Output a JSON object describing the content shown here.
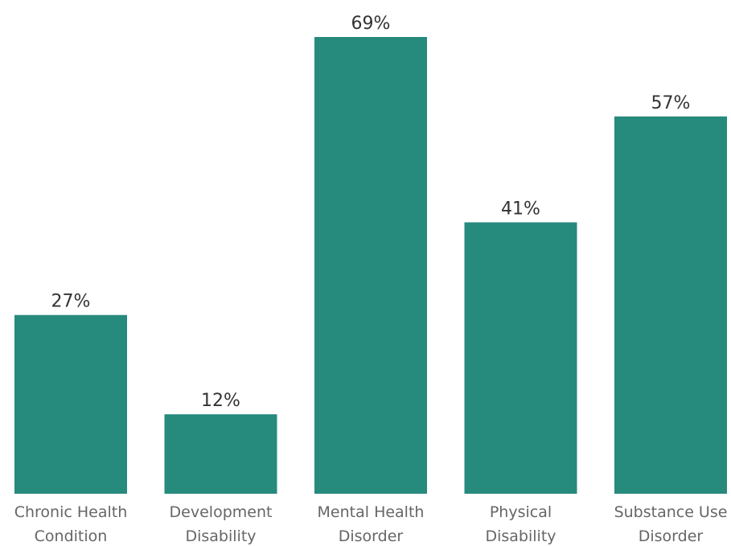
{
  "chart_data": {
    "type": "bar",
    "categories": [
      [
        "Chronic Health",
        "Condition"
      ],
      [
        "Development",
        "Disability"
      ],
      [
        "Mental Health",
        "Disorder"
      ],
      [
        "Physical",
        "Disability"
      ],
      [
        "Substance Use",
        "Disorder"
      ]
    ],
    "values": [
      27,
      12,
      69,
      41,
      57
    ],
    "value_labels": [
      "27%",
      "12%",
      "69%",
      "41%",
      "57%"
    ],
    "title": "",
    "xlabel": "",
    "ylabel": "",
    "ylim": [
      0,
      69
    ],
    "grid": false,
    "legend": "none",
    "bar_color": "#268a7d"
  }
}
